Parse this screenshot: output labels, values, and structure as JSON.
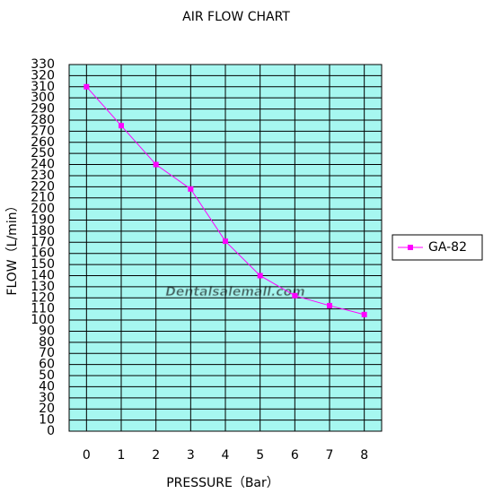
{
  "chart_data": {
    "type": "line",
    "title": "AIR FLOW CHART",
    "x_label": "PRESSURE（Bar）",
    "y_label": "FLOW（L/min）",
    "watermark": "Dentalsalemall.com",
    "x": [
      0,
      1,
      2,
      3,
      4,
      5,
      6,
      7,
      8
    ],
    "series": [
      {
        "name": "GA-82",
        "color": "#ff00ff",
        "values": [
          310,
          275,
          240,
          218,
          171,
          140,
          122,
          113,
          105
        ]
      }
    ],
    "xlim": [
      -0.5,
      8.5
    ],
    "xticks": [
      0,
      1,
      2,
      3,
      4,
      5,
      6,
      7,
      8
    ],
    "ylim": [
      0,
      330
    ],
    "yticks": [
      0,
      10,
      20,
      30,
      40,
      50,
      60,
      70,
      80,
      90,
      100,
      110,
      120,
      130,
      140,
      150,
      160,
      170,
      180,
      190,
      200,
      210,
      220,
      230,
      240,
      250,
      260,
      270,
      280,
      290,
      300,
      310,
      320,
      330
    ],
    "grid": true,
    "plot_color": "#a6f7f0",
    "legend": "right"
  }
}
